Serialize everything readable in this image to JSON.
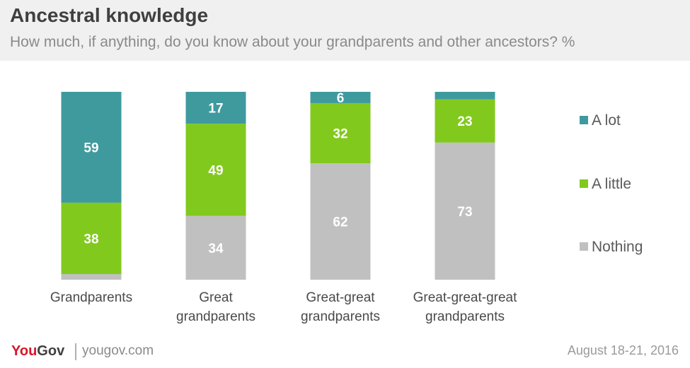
{
  "header": {
    "title": "Ancestral knowledge",
    "subtitle": "How much, if anything, do you know about your grandparents and other ancestors? %"
  },
  "chart_data": {
    "type": "bar",
    "stacked": true,
    "orientation": "vertical",
    "title": "Ancestral knowledge",
    "subtitle": "How much, if anything, do you know about your grandparents and other ancestors? %",
    "xlabel": "",
    "ylabel": "",
    "ylim": [
      0,
      100
    ],
    "grid": false,
    "legend_position": "right",
    "categories": [
      [
        "Grandparents"
      ],
      [
        "Great",
        "grandparents"
      ],
      [
        "Great-great",
        "grandparents"
      ],
      [
        "Great-great-great",
        "grandparents"
      ]
    ],
    "series": [
      {
        "name": "Nothing",
        "color": "#c0c0c0",
        "values": [
          3,
          34,
          62,
          73
        ],
        "labels": [
          "",
          "34",
          "62",
          "73"
        ]
      },
      {
        "name": "A little",
        "color": "#82c91e",
        "values": [
          38,
          49,
          32,
          23
        ],
        "labels": [
          "38",
          "49",
          "32",
          "23"
        ]
      },
      {
        "name": "A lot",
        "color": "#3f9a9e",
        "values": [
          59,
          17,
          6,
          4
        ],
        "labels": [
          "59",
          "17",
          "6",
          ""
        ]
      }
    ],
    "legend": [
      {
        "name": "A lot",
        "color": "#3f9a9e"
      },
      {
        "name": "A little",
        "color": "#82c91e"
      },
      {
        "name": "Nothing",
        "color": "#c0c0c0"
      }
    ]
  },
  "footer": {
    "logo_you": "You",
    "logo_gov": "Gov",
    "site": "yougov.com",
    "date": "August 18-21, 2016"
  }
}
